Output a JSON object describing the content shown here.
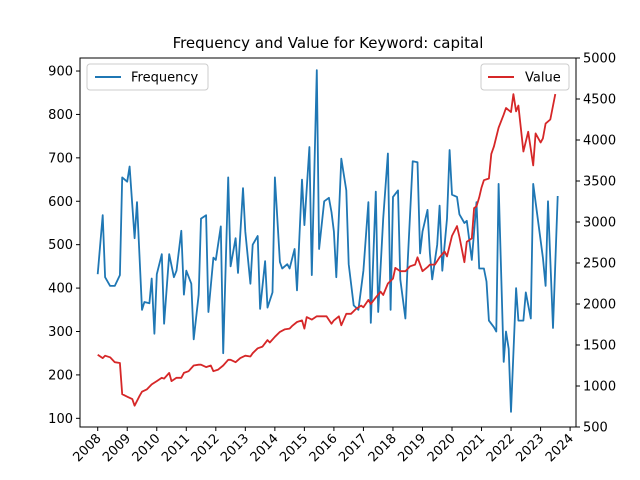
{
  "chart_data": {
    "type": "line",
    "title": "Frequency and Value for Keyword: capital",
    "xlabel": "",
    "ylabel_left": "",
    "ylabel_right": "",
    "x_ticks": [
      "2008",
      "2009",
      "2010",
      "2011",
      "2012",
      "2013",
      "2014",
      "2015",
      "2016",
      "2017",
      "2018",
      "2019",
      "2020",
      "2021",
      "2022",
      "2023",
      "2024"
    ],
    "x_range": [
      2007.4,
      2024.2
    ],
    "y_left_range": [
      80,
      930
    ],
    "y_left_ticks": [
      100,
      200,
      300,
      400,
      500,
      600,
      700,
      800,
      900
    ],
    "y_right_range": [
      500,
      5000
    ],
    "y_right_ticks": [
      500,
      1000,
      1500,
      2000,
      2500,
      3000,
      3500,
      4000,
      4500,
      5000
    ],
    "grid": false,
    "series": [
      {
        "name": "Frequency",
        "axis": "left",
        "color": "#1f77b4",
        "legend_position": "top-left",
        "points": [
          [
            2008.0,
            432
          ],
          [
            2008.17,
            568
          ],
          [
            2008.25,
            425
          ],
          [
            2008.42,
            405
          ],
          [
            2008.58,
            405
          ],
          [
            2008.75,
            430
          ],
          [
            2008.83,
            655
          ],
          [
            2009.0,
            645
          ],
          [
            2009.08,
            680
          ],
          [
            2009.25,
            515
          ],
          [
            2009.33,
            598
          ],
          [
            2009.5,
            350
          ],
          [
            2009.58,
            368
          ],
          [
            2009.75,
            365
          ],
          [
            2009.83,
            422
          ],
          [
            2009.92,
            295
          ],
          [
            2010.0,
            432
          ],
          [
            2010.17,
            478
          ],
          [
            2010.25,
            318
          ],
          [
            2010.42,
            478
          ],
          [
            2010.58,
            425
          ],
          [
            2010.67,
            440
          ],
          [
            2010.83,
            532
          ],
          [
            2010.92,
            385
          ],
          [
            2011.0,
            440
          ],
          [
            2011.17,
            410
          ],
          [
            2011.25,
            282
          ],
          [
            2011.42,
            385
          ],
          [
            2011.5,
            560
          ],
          [
            2011.67,
            568
          ],
          [
            2011.75,
            345
          ],
          [
            2011.92,
            470
          ],
          [
            2012.0,
            465
          ],
          [
            2012.17,
            542
          ],
          [
            2012.25,
            250
          ],
          [
            2012.42,
            655
          ],
          [
            2012.5,
            450
          ],
          [
            2012.67,
            515
          ],
          [
            2012.75,
            435
          ],
          [
            2012.92,
            630
          ],
          [
            2013.0,
            530
          ],
          [
            2013.17,
            410
          ],
          [
            2013.25,
            500
          ],
          [
            2013.42,
            520
          ],
          [
            2013.5,
            352
          ],
          [
            2013.67,
            462
          ],
          [
            2013.75,
            355
          ],
          [
            2013.92,
            390
          ],
          [
            2014.0,
            655
          ],
          [
            2014.17,
            460
          ],
          [
            2014.25,
            445
          ],
          [
            2014.42,
            455
          ],
          [
            2014.5,
            445
          ],
          [
            2014.67,
            490
          ],
          [
            2014.75,
            395
          ],
          [
            2014.92,
            650
          ],
          [
            2015.0,
            545
          ],
          [
            2015.17,
            725
          ],
          [
            2015.25,
            430
          ],
          [
            2015.42,
            902
          ],
          [
            2015.5,
            490
          ],
          [
            2015.67,
            600
          ],
          [
            2015.83,
            608
          ],
          [
            2015.92,
            575
          ],
          [
            2016.0,
            530
          ],
          [
            2016.08,
            425
          ],
          [
            2016.25,
            698
          ],
          [
            2016.42,
            625
          ],
          [
            2016.5,
            455
          ],
          [
            2016.67,
            360
          ],
          [
            2016.83,
            350
          ],
          [
            2017.0,
            440
          ],
          [
            2017.17,
            598
          ],
          [
            2017.25,
            320
          ],
          [
            2017.42,
            622
          ],
          [
            2017.5,
            345
          ],
          [
            2017.67,
            560
          ],
          [
            2017.83,
            710
          ],
          [
            2017.92,
            350
          ],
          [
            2018.0,
            610
          ],
          [
            2018.17,
            625
          ],
          [
            2018.25,
            420
          ],
          [
            2018.42,
            330
          ],
          [
            2018.5,
            460
          ],
          [
            2018.67,
            692
          ],
          [
            2018.83,
            690
          ],
          [
            2018.92,
            480
          ],
          [
            2019.0,
            530
          ],
          [
            2019.17,
            580
          ],
          [
            2019.25,
            480
          ],
          [
            2019.33,
            420
          ],
          [
            2019.5,
            500
          ],
          [
            2019.58,
            590
          ],
          [
            2019.67,
            440
          ],
          [
            2019.83,
            560
          ],
          [
            2019.92,
            718
          ],
          [
            2020.0,
            615
          ],
          [
            2020.17,
            610
          ],
          [
            2020.25,
            570
          ],
          [
            2020.42,
            550
          ],
          [
            2020.5,
            555
          ],
          [
            2020.67,
            465
          ],
          [
            2020.83,
            598
          ],
          [
            2020.92,
            445
          ],
          [
            2021.08,
            445
          ],
          [
            2021.17,
            415
          ],
          [
            2021.25,
            325
          ],
          [
            2021.42,
            310
          ],
          [
            2021.5,
            300
          ],
          [
            2021.58,
            640
          ],
          [
            2021.75,
            230
          ],
          [
            2021.83,
            300
          ],
          [
            2021.92,
            260
          ],
          [
            2022.0,
            115
          ],
          [
            2022.17,
            400
          ],
          [
            2022.25,
            325
          ],
          [
            2022.42,
            325
          ],
          [
            2022.5,
            390
          ],
          [
            2022.67,
            330
          ],
          [
            2022.75,
            640
          ],
          [
            2023.0,
            510
          ],
          [
            2023.08,
            470
          ],
          [
            2023.17,
            405
          ],
          [
            2023.25,
            600
          ],
          [
            2023.42,
            308
          ],
          [
            2023.58,
            612
          ]
        ]
      },
      {
        "name": "Value",
        "axis": "right",
        "color": "#d62728",
        "legend_position": "top-right",
        "points": [
          [
            2008.0,
            1380
          ],
          [
            2008.17,
            1340
          ],
          [
            2008.25,
            1370
          ],
          [
            2008.42,
            1350
          ],
          [
            2008.58,
            1290
          ],
          [
            2008.75,
            1280
          ],
          [
            2008.83,
            900
          ],
          [
            2009.0,
            870
          ],
          [
            2009.17,
            840
          ],
          [
            2009.25,
            760
          ],
          [
            2009.42,
            880
          ],
          [
            2009.5,
            930
          ],
          [
            2009.67,
            960
          ],
          [
            2009.83,
            1020
          ],
          [
            2010.0,
            1060
          ],
          [
            2010.17,
            1100
          ],
          [
            2010.25,
            1090
          ],
          [
            2010.42,
            1160
          ],
          [
            2010.5,
            1060
          ],
          [
            2010.67,
            1100
          ],
          [
            2010.83,
            1100
          ],
          [
            2010.92,
            1160
          ],
          [
            2011.08,
            1180
          ],
          [
            2011.25,
            1250
          ],
          [
            2011.42,
            1260
          ],
          [
            2011.5,
            1260
          ],
          [
            2011.67,
            1230
          ],
          [
            2011.83,
            1250
          ],
          [
            2011.92,
            1180
          ],
          [
            2012.08,
            1200
          ],
          [
            2012.25,
            1250
          ],
          [
            2012.42,
            1320
          ],
          [
            2012.5,
            1320
          ],
          [
            2012.67,
            1290
          ],
          [
            2012.83,
            1340
          ],
          [
            2013.0,
            1370
          ],
          [
            2013.17,
            1360
          ],
          [
            2013.25,
            1400
          ],
          [
            2013.42,
            1460
          ],
          [
            2013.58,
            1480
          ],
          [
            2013.75,
            1560
          ],
          [
            2013.83,
            1530
          ],
          [
            2014.0,
            1600
          ],
          [
            2014.17,
            1660
          ],
          [
            2014.33,
            1690
          ],
          [
            2014.5,
            1700
          ],
          [
            2014.58,
            1730
          ],
          [
            2014.75,
            1780
          ],
          [
            2014.92,
            1800
          ],
          [
            2015.0,
            1700
          ],
          [
            2015.08,
            1840
          ],
          [
            2015.25,
            1810
          ],
          [
            2015.42,
            1850
          ],
          [
            2015.58,
            1850
          ],
          [
            2015.75,
            1850
          ],
          [
            2015.92,
            1760
          ],
          [
            2016.0,
            1800
          ],
          [
            2016.17,
            1850
          ],
          [
            2016.25,
            1740
          ],
          [
            2016.42,
            1880
          ],
          [
            2016.58,
            1880
          ],
          [
            2016.75,
            1940
          ],
          [
            2016.92,
            1980
          ],
          [
            2017.0,
            1960
          ],
          [
            2017.17,
            2050
          ],
          [
            2017.25,
            2000
          ],
          [
            2017.42,
            2080
          ],
          [
            2017.58,
            2150
          ],
          [
            2017.67,
            2110
          ],
          [
            2017.83,
            2250
          ],
          [
            2018.0,
            2310
          ],
          [
            2018.08,
            2440
          ],
          [
            2018.25,
            2400
          ],
          [
            2018.42,
            2400
          ],
          [
            2018.58,
            2460
          ],
          [
            2018.75,
            2480
          ],
          [
            2018.83,
            2570
          ],
          [
            2018.92,
            2480
          ],
          [
            2019.0,
            2400
          ],
          [
            2019.17,
            2450
          ],
          [
            2019.25,
            2480
          ],
          [
            2019.42,
            2480
          ],
          [
            2019.58,
            2570
          ],
          [
            2019.75,
            2640
          ],
          [
            2019.83,
            2580
          ],
          [
            2020.0,
            2830
          ],
          [
            2020.17,
            2950
          ],
          [
            2020.25,
            2820
          ],
          [
            2020.42,
            2510
          ],
          [
            2020.5,
            2760
          ],
          [
            2020.67,
            2800
          ],
          [
            2020.75,
            3170
          ],
          [
            2020.83,
            3190
          ],
          [
            2020.92,
            3300
          ],
          [
            2021.0,
            3420
          ],
          [
            2021.08,
            3510
          ],
          [
            2021.25,
            3530
          ],
          [
            2021.33,
            3830
          ],
          [
            2021.42,
            3920
          ],
          [
            2021.58,
            4150
          ],
          [
            2021.75,
            4310
          ],
          [
            2021.83,
            4390
          ],
          [
            2022.0,
            4340
          ],
          [
            2022.08,
            4560
          ],
          [
            2022.17,
            4350
          ],
          [
            2022.25,
            4420
          ],
          [
            2022.42,
            3860
          ],
          [
            2022.58,
            4100
          ],
          [
            2022.75,
            3690
          ],
          [
            2022.83,
            4080
          ],
          [
            2023.0,
            3970
          ],
          [
            2023.08,
            4020
          ],
          [
            2023.17,
            4200
          ],
          [
            2023.33,
            4250
          ],
          [
            2023.5,
            4560
          ]
        ]
      }
    ]
  }
}
